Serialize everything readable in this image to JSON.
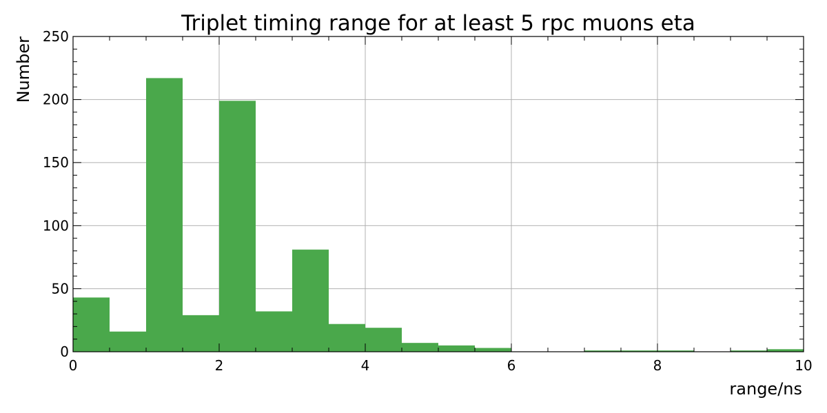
{
  "chart_data": {
    "type": "bar",
    "title": "Triplet timing range for at least 5 rpc muons eta",
    "xlabel": "range/ns",
    "ylabel": "Number",
    "xlim": [
      0,
      10
    ],
    "ylim": [
      0,
      250
    ],
    "bin_width": 0.5,
    "x_ticks": [
      "0",
      "2",
      "4",
      "6",
      "8",
      "10"
    ],
    "y_ticks": [
      "0",
      "50",
      "100",
      "150",
      "200",
      "250"
    ],
    "bins": [
      {
        "start": 0.0,
        "end": 0.5,
        "value": 43
      },
      {
        "start": 0.5,
        "end": 1.0,
        "value": 16
      },
      {
        "start": 1.0,
        "end": 1.5,
        "value": 217
      },
      {
        "start": 1.5,
        "end": 2.0,
        "value": 29
      },
      {
        "start": 2.0,
        "end": 2.5,
        "value": 199
      },
      {
        "start": 2.5,
        "end": 3.0,
        "value": 32
      },
      {
        "start": 3.0,
        "end": 3.5,
        "value": 81
      },
      {
        "start": 3.5,
        "end": 4.0,
        "value": 22
      },
      {
        "start": 4.0,
        "end": 4.5,
        "value": 19
      },
      {
        "start": 4.5,
        "end": 5.0,
        "value": 7
      },
      {
        "start": 5.0,
        "end": 5.5,
        "value": 5
      },
      {
        "start": 5.5,
        "end": 6.0,
        "value": 3
      },
      {
        "start": 6.0,
        "end": 6.5,
        "value": 0
      },
      {
        "start": 6.5,
        "end": 7.0,
        "value": 0
      },
      {
        "start": 7.0,
        "end": 7.5,
        "value": 1
      },
      {
        "start": 7.5,
        "end": 8.0,
        "value": 1
      },
      {
        "start": 8.0,
        "end": 8.5,
        "value": 1
      },
      {
        "start": 8.5,
        "end": 9.0,
        "value": 0
      },
      {
        "start": 9.0,
        "end": 9.5,
        "value": 1
      },
      {
        "start": 9.5,
        "end": 10.0,
        "value": 2
      }
    ],
    "bar_color": "#4aa84b",
    "grid": true,
    "legend": "none"
  }
}
